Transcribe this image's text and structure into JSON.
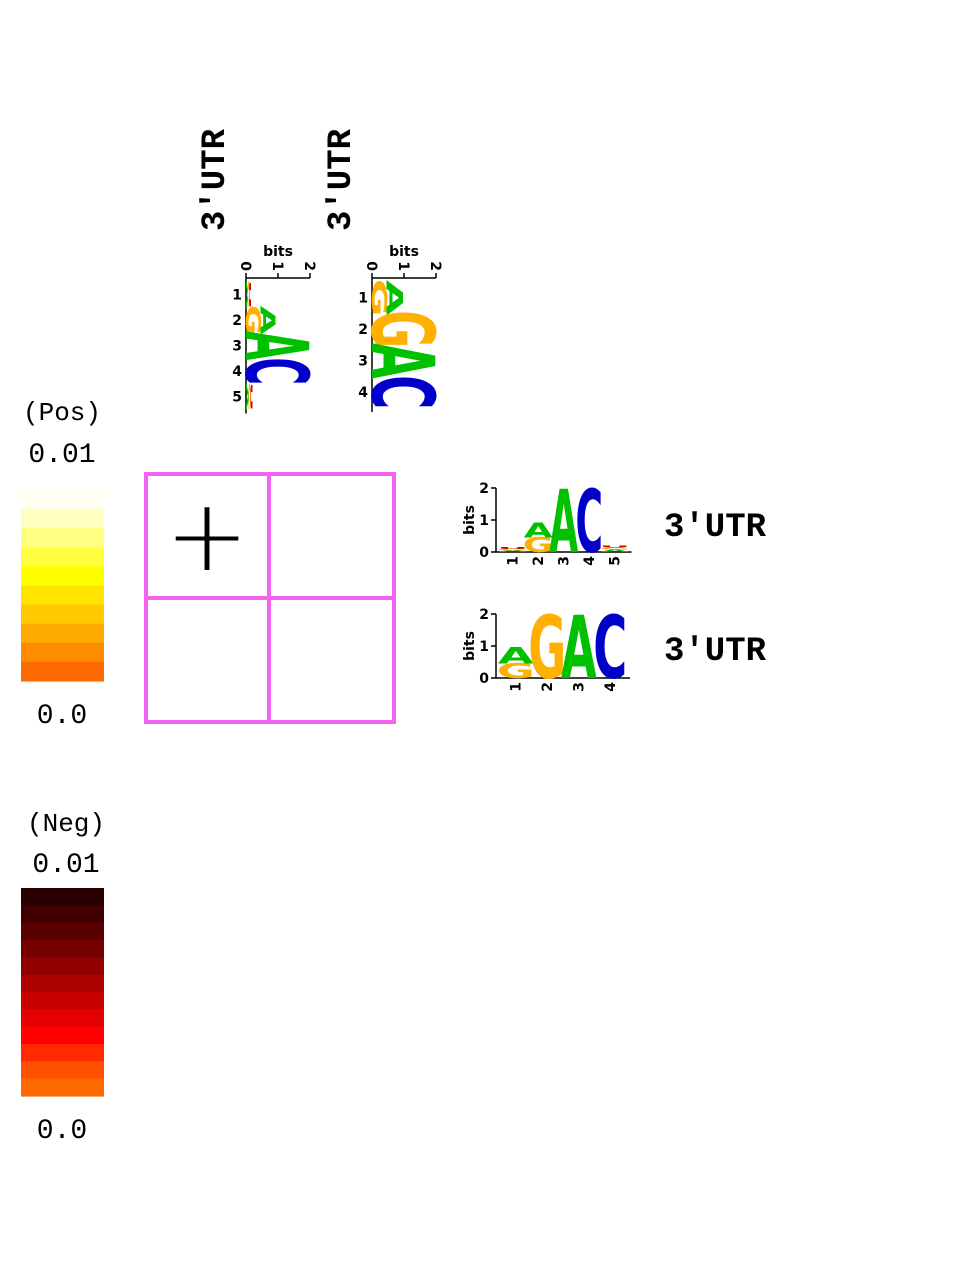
{
  "column_labels": [
    "3′UTR",
    "3′UTR"
  ],
  "row_labels": [
    "3′UTR",
    "3′UTR"
  ],
  "grid": {
    "cells": [
      [
        {
          "marker": "+"
        },
        {
          "marker": ""
        }
      ],
      [
        {
          "marker": ""
        },
        {
          "marker": ""
        }
      ]
    ],
    "border_color": "#f564f0"
  },
  "legend_pos": {
    "title": "(Pos)",
    "max_label": "0.01",
    "min_label": "0.0",
    "colors": [
      "#fffff2",
      "#ffffc0",
      "#ffff80",
      "#ffff40",
      "#ffff00",
      "#ffe400",
      "#ffc800",
      "#ffaa00",
      "#ff8c00",
      "#ff6a00"
    ]
  },
  "legend_neg": {
    "title": "(Neg)",
    "max_label": "0.01",
    "min_label": "0.0",
    "colors": [
      "#2a0000",
      "#420000",
      "#5a0000",
      "#760000",
      "#900000",
      "#ad0000",
      "#c80000",
      "#e40000",
      "#ff0000",
      "#ff2a00",
      "#ff5000",
      "#ff6a00"
    ]
  },
  "logo_axis": {
    "label": "bits",
    "ticks": [
      "0",
      "1",
      "2"
    ]
  },
  "motif_colors": {
    "A": "#00c000",
    "C": "#0000c8",
    "G": "#ffb000",
    "U": "#d00000"
  },
  "motifs": [
    {
      "positions": [
        "1",
        "2",
        "3",
        "4",
        "5"
      ],
      "stacks": [
        [
          {
            "letter": "A",
            "bits": 0.05
          },
          {
            "letter": "G",
            "bits": 0.05
          },
          {
            "letter": "U",
            "bits": 0.05
          }
        ],
        [
          {
            "letter": "G",
            "bits": 0.45
          },
          {
            "letter": "A",
            "bits": 0.45
          }
        ],
        [
          {
            "letter": "A",
            "bits": 1.95
          }
        ],
        [
          {
            "letter": "C",
            "bits": 1.95
          }
        ],
        [
          {
            "letter": "A",
            "bits": 0.08
          },
          {
            "letter": "G",
            "bits": 0.06
          },
          {
            "letter": "U",
            "bits": 0.06
          }
        ]
      ]
    },
    {
      "positions": [
        "1",
        "2",
        "3",
        "4"
      ],
      "stacks": [
        [
          {
            "letter": "G",
            "bits": 0.45
          },
          {
            "letter": "A",
            "bits": 0.5
          }
        ],
        [
          {
            "letter": "G",
            "bits": 1.95
          }
        ],
        [
          {
            "letter": "A",
            "bits": 1.95
          }
        ],
        [
          {
            "letter": "C",
            "bits": 1.95
          }
        ]
      ]
    }
  ]
}
